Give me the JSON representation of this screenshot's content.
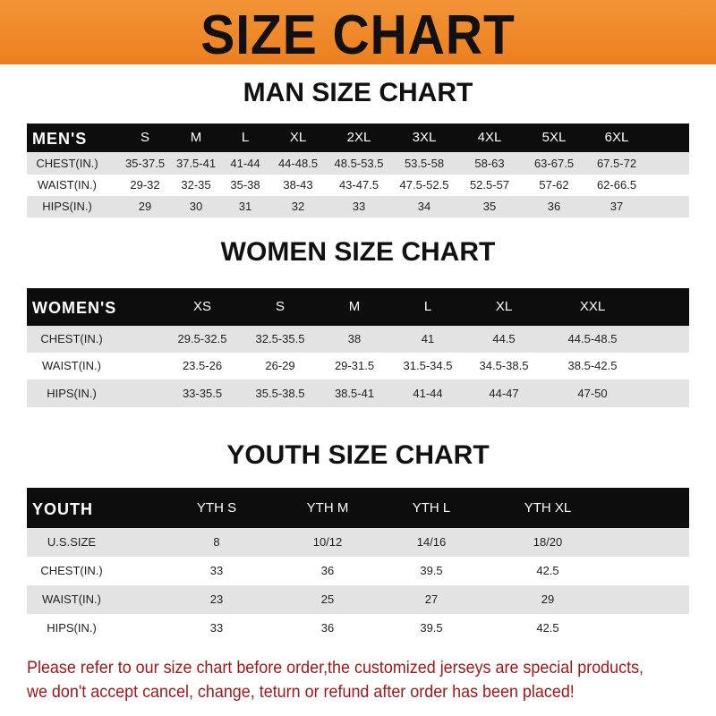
{
  "banner_title": "SIZE CHART",
  "colors": {
    "banner": "#ef8a2a",
    "header_row": "#0d0d0d",
    "stripe": "#e3e3e3",
    "note": "#a3161a"
  },
  "men": {
    "title": "MAN SIZE CHART",
    "header": [
      "MEN'S",
      "S",
      "M",
      "L",
      "XL",
      "2XL",
      "3XL",
      "4XL",
      "5XL",
      "6XL"
    ],
    "rows": [
      [
        "CHEST(IN.)",
        "35-37.5",
        "37.5-41",
        "41-44",
        "44-48.5",
        "48.5-53.5",
        "53.5-58",
        "58-63",
        "63-67.5",
        "67.5-72"
      ],
      [
        "WAIST(IN.)",
        "29-32",
        "32-35",
        "35-38",
        "38-43",
        "43-47.5",
        "47.5-52.5",
        "52.5-57",
        "57-62",
        "62-66.5"
      ],
      [
        "HIPS(IN.)",
        "29",
        "30",
        "31",
        "32",
        "33",
        "34",
        "35",
        "36",
        "37"
      ]
    ]
  },
  "women": {
    "title": "WOMEN SIZE CHART",
    "header": [
      "WOMEN'S",
      "XS",
      "S",
      "M",
      "L",
      "XL",
      "XXL"
    ],
    "rows": [
      [
        "CHEST(IN.)",
        "29.5-32.5",
        "32.5-35.5",
        "38",
        "41",
        "44.5",
        "44.5-48.5"
      ],
      [
        "WAIST(IN.)",
        "23.5-26",
        "26-29",
        "29-31.5",
        "31.5-34.5",
        "34.5-38.5",
        "38.5-42.5"
      ],
      [
        "HIPS(IN.)",
        "33-35.5",
        "35.5-38.5",
        "38.5-41",
        "41-44",
        "44-47",
        "47-50"
      ]
    ]
  },
  "youth": {
    "title": "YOUTH SIZE CHART",
    "header": [
      "YOUTH",
      "YTH S",
      "YTH M",
      "YTH L",
      "YTH XL"
    ],
    "rows": [
      [
        "U.S.SIZE",
        "8",
        "10/12",
        "14/16",
        "18/20"
      ],
      [
        "CHEST(IN.)",
        "33",
        "36",
        "39.5",
        "42.5"
      ],
      [
        "WAIST(IN.)",
        "23",
        "25",
        "27",
        "29"
      ],
      [
        "HIPS(IN.)",
        "33",
        "36",
        "39.5",
        "42.5"
      ]
    ]
  },
  "note": {
    "line1": "Please refer to our size chart before order,the customized jerseys are special products,",
    "line2": "we don't accept cancel, change, teturn or refund after order has been placed!"
  }
}
